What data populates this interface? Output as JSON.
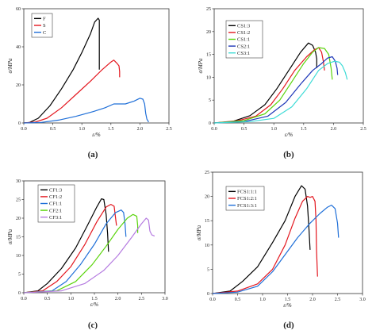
{
  "chart_data": [
    {
      "type": "line",
      "caption": "(a)",
      "xlabel": "ε/%",
      "ylabel": "σ/MPa",
      "xlim": [
        0,
        2.5
      ],
      "ylim": [
        0,
        60
      ],
      "xticks": [
        "0.0",
        "0.5",
        "1.0",
        "1.5",
        "2.0",
        "2.5"
      ],
      "yticks": [
        "0",
        "20",
        "40",
        "60"
      ],
      "legend_position": "top-left",
      "series": [
        {
          "name": "F",
          "color": "#000000",
          "points": [
            [
              0,
              0
            ],
            [
              0.1,
              0.3
            ],
            [
              0.25,
              2.5
            ],
            [
              0.45,
              9
            ],
            [
              0.65,
              18
            ],
            [
              0.85,
              28
            ],
            [
              1.0,
              37
            ],
            [
              1.15,
              47
            ],
            [
              1.22,
              53
            ],
            [
              1.28,
              55
            ],
            [
              1.3,
              54
            ],
            [
              1.3,
              40
            ],
            [
              1.3,
              28
            ]
          ]
        },
        {
          "name": "S",
          "color": "#e3161e",
          "points": [
            [
              0,
              0
            ],
            [
              0.2,
              0.5
            ],
            [
              0.4,
              2.5
            ],
            [
              0.65,
              8
            ],
            [
              0.9,
              15
            ],
            [
              1.15,
              22
            ],
            [
              1.35,
              28
            ],
            [
              1.5,
              32
            ],
            [
              1.55,
              33
            ],
            [
              1.6,
              31.5
            ],
            [
              1.64,
              30
            ],
            [
              1.65,
              27
            ],
            [
              1.65,
              24
            ]
          ]
        },
        {
          "name": "C",
          "color": "#1f6fd8",
          "points": [
            [
              0,
              0
            ],
            [
              0.3,
              0.3
            ],
            [
              0.6,
              1.5
            ],
            [
              0.9,
              3.5
            ],
            [
              1.2,
              6
            ],
            [
              1.4,
              8
            ],
            [
              1.55,
              10
            ],
            [
              1.75,
              10
            ],
            [
              1.9,
              11.5
            ],
            [
              2.0,
              13
            ],
            [
              2.05,
              12.5
            ],
            [
              2.08,
              10
            ],
            [
              2.1,
              5
            ],
            [
              2.12,
              2
            ],
            [
              2.15,
              0.5
            ]
          ]
        }
      ]
    },
    {
      "type": "line",
      "caption": "(b)",
      "xlabel": "ε/%",
      "ylabel": "σ/MPa",
      "xlim": [
        0,
        2.5
      ],
      "ylim": [
        0,
        25
      ],
      "xticks": [
        "0.0",
        "0.5",
        "1.0",
        "1.5",
        "2.0",
        "2.5"
      ],
      "yticks": [
        "0",
        "5",
        "10",
        "15",
        "20",
        "25"
      ],
      "legend_position": "top-left",
      "series": [
        {
          "name": "CS1:3",
          "color": "#000000",
          "points": [
            [
              0,
              0
            ],
            [
              0.3,
              0.3
            ],
            [
              0.6,
              1.6
            ],
            [
              0.85,
              4
            ],
            [
              1.05,
              7.5
            ],
            [
              1.25,
              11.5
            ],
            [
              1.45,
              15.5
            ],
            [
              1.58,
              17.5
            ],
            [
              1.65,
              17
            ],
            [
              1.7,
              15.5
            ],
            [
              1.72,
              14
            ],
            [
              1.72,
              12
            ]
          ]
        },
        {
          "name": "CS1:2",
          "color": "#e3161e",
          "points": [
            [
              0,
              0
            ],
            [
              0.4,
              0.5
            ],
            [
              0.7,
              1.5
            ],
            [
              0.95,
              4
            ],
            [
              1.15,
              7.5
            ],
            [
              1.35,
              11.5
            ],
            [
              1.55,
              14.5
            ],
            [
              1.68,
              16
            ],
            [
              1.75,
              16.5
            ],
            [
              1.8,
              15.5
            ],
            [
              1.83,
              13.5
            ],
            [
              1.85,
              11.5
            ]
          ]
        },
        {
          "name": "CS1:1",
          "color": "#5ad40c",
          "points": [
            [
              0,
              0
            ],
            [
              0.5,
              0.5
            ],
            [
              0.85,
              2
            ],
            [
              1.1,
              5
            ],
            [
              1.3,
              9
            ],
            [
              1.5,
              13
            ],
            [
              1.65,
              15.5
            ],
            [
              1.75,
              16.5
            ],
            [
              1.85,
              16.3
            ],
            [
              1.92,
              15
            ],
            [
              1.96,
              12
            ],
            [
              1.98,
              9.5
            ]
          ]
        },
        {
          "name": "CS2:1",
          "color": "#1d36b8",
          "points": [
            [
              0,
              0
            ],
            [
              0.5,
              0.3
            ],
            [
              0.9,
              1.5
            ],
            [
              1.2,
              4.5
            ],
            [
              1.45,
              8.5
            ],
            [
              1.65,
              11.5
            ],
            [
              1.8,
              13
            ],
            [
              1.9,
              14.2
            ],
            [
              1.98,
              14.5
            ],
            [
              2.03,
              13.5
            ],
            [
              2.06,
              12
            ],
            [
              2.07,
              10.5
            ]
          ]
        },
        {
          "name": "CS3:1",
          "color": "#3ddbd6",
          "points": [
            [
              0,
              0
            ],
            [
              0.6,
              0.3
            ],
            [
              1.0,
              1
            ],
            [
              1.3,
              3.5
            ],
            [
              1.55,
              7.5
            ],
            [
              1.75,
              11.5
            ],
            [
              1.9,
              13
            ],
            [
              2.02,
              13.5
            ],
            [
              2.1,
              13.3
            ],
            [
              2.15,
              12.5
            ],
            [
              2.2,
              11
            ],
            [
              2.23,
              9.5
            ]
          ]
        }
      ]
    },
    {
      "type": "line",
      "caption": "(c)",
      "xlabel": "ε/%",
      "ylabel": "σ/MPa",
      "xlim": [
        0,
        3.0
      ],
      "ylim": [
        0,
        30
      ],
      "xticks": [
        "0.0",
        "0.5",
        "1.0",
        "1.5",
        "2.0",
        "2.5",
        "3.0"
      ],
      "yticks": [
        "0",
        "5",
        "10",
        "15",
        "20",
        "25",
        "30"
      ],
      "legend_position": "top-left",
      "series": [
        {
          "name": "CF1:3",
          "color": "#000000",
          "points": [
            [
              0,
              0
            ],
            [
              0.3,
              0.5
            ],
            [
              0.5,
              2.5
            ],
            [
              0.8,
              6.5
            ],
            [
              1.1,
              12
            ],
            [
              1.35,
              18
            ],
            [
              1.55,
              23
            ],
            [
              1.65,
              25.2
            ],
            [
              1.7,
              25
            ],
            [
              1.75,
              21
            ],
            [
              1.78,
              16
            ],
            [
              1.8,
              11
            ]
          ]
        },
        {
          "name": "CF1:2",
          "color": "#e3161e",
          "points": [
            [
              0,
              0
            ],
            [
              0.4,
              0.5
            ],
            [
              0.7,
              3
            ],
            [
              1.0,
              7
            ],
            [
              1.3,
              13
            ],
            [
              1.55,
              19
            ],
            [
              1.75,
              23
            ],
            [
              1.85,
              23.7
            ],
            [
              1.92,
              23.2
            ],
            [
              1.95,
              20
            ],
            [
              1.97,
              18
            ]
          ]
        },
        {
          "name": "CF1:1",
          "color": "#1f6fd8",
          "points": [
            [
              0,
              0
            ],
            [
              0.6,
              0.5
            ],
            [
              0.9,
              3
            ],
            [
              1.2,
              7.5
            ],
            [
              1.5,
              13
            ],
            [
              1.75,
              18.5
            ],
            [
              1.95,
              21.5
            ],
            [
              2.07,
              22.2
            ],
            [
              2.12,
              21.5
            ],
            [
              2.15,
              18.5
            ],
            [
              2.17,
              15
            ]
          ]
        },
        {
          "name": "CF2:1",
          "color": "#5ad40c",
          "points": [
            [
              0,
              0
            ],
            [
              0.7,
              0.5
            ],
            [
              1.1,
              3
            ],
            [
              1.45,
              7.5
            ],
            [
              1.75,
              12.5
            ],
            [
              2.0,
              17
            ],
            [
              2.2,
              20
            ],
            [
              2.32,
              21
            ],
            [
              2.4,
              20.5
            ],
            [
              2.42,
              18
            ],
            [
              2.42,
              16
            ]
          ]
        },
        {
          "name": "CF3:1",
          "color": "#b57be0",
          "points": [
            [
              0,
              0
            ],
            [
              0.8,
              0.5
            ],
            [
              1.3,
              2.5
            ],
            [
              1.7,
              6
            ],
            [
              2.0,
              10
            ],
            [
              2.3,
              15
            ],
            [
              2.5,
              18.5
            ],
            [
              2.6,
              20
            ],
            [
              2.65,
              19.5
            ],
            [
              2.68,
              16.5
            ],
            [
              2.72,
              15.5
            ],
            [
              2.78,
              15.2
            ]
          ]
        }
      ]
    },
    {
      "type": "line",
      "caption": "(d)",
      "xlabel": "ε/%",
      "ylabel": "σ/MPa",
      "xlim": [
        0,
        3.0
      ],
      "ylim": [
        0,
        25
      ],
      "xticks": [
        "0.0",
        "0.5",
        "1.0",
        "1.5",
        "2.0",
        "2.5",
        "3.0"
      ],
      "yticks": [
        "0",
        "5",
        "10",
        "15",
        "20",
        "25"
      ],
      "legend_position": "top-left",
      "series": [
        {
          "name": "FCS1:1:1",
          "color": "#000000",
          "points": [
            [
              0,
              0
            ],
            [
              0.35,
              0.5
            ],
            [
              0.6,
              2.5
            ],
            [
              0.9,
              5.5
            ],
            [
              1.2,
              10.5
            ],
            [
              1.45,
              15
            ],
            [
              1.65,
              20
            ],
            [
              1.78,
              22.2
            ],
            [
              1.85,
              21.5
            ],
            [
              1.9,
              18
            ],
            [
              1.93,
              13
            ],
            [
              1.95,
              9
            ]
          ]
        },
        {
          "name": "FCS1:2:1",
          "color": "#e3161e",
          "points": [
            [
              0,
              0
            ],
            [
              0.5,
              0.5
            ],
            [
              0.9,
              2
            ],
            [
              1.2,
              5
            ],
            [
              1.45,
              10
            ],
            [
              1.65,
              15.5
            ],
            [
              1.8,
              19
            ],
            [
              1.9,
              20
            ],
            [
              1.95,
              19.8
            ],
            [
              2.0,
              20
            ],
            [
              2.05,
              19
            ],
            [
              2.07,
              15
            ],
            [
              2.08,
              9
            ],
            [
              2.1,
              3.5
            ]
          ]
        },
        {
          "name": "FCS1:3:1",
          "color": "#1f6fd8",
          "points": [
            [
              0,
              0
            ],
            [
              0.5,
              0.3
            ],
            [
              0.9,
              1.5
            ],
            [
              1.2,
              4.5
            ],
            [
              1.45,
              8
            ],
            [
              1.7,
              11.5
            ],
            [
              1.95,
              14.5
            ],
            [
              2.15,
              16.5
            ],
            [
              2.3,
              17.8
            ],
            [
              2.38,
              18.2
            ],
            [
              2.45,
              17.5
            ],
            [
              2.5,
              14.5
            ],
            [
              2.52,
              11.5
            ]
          ]
        }
      ]
    }
  ]
}
